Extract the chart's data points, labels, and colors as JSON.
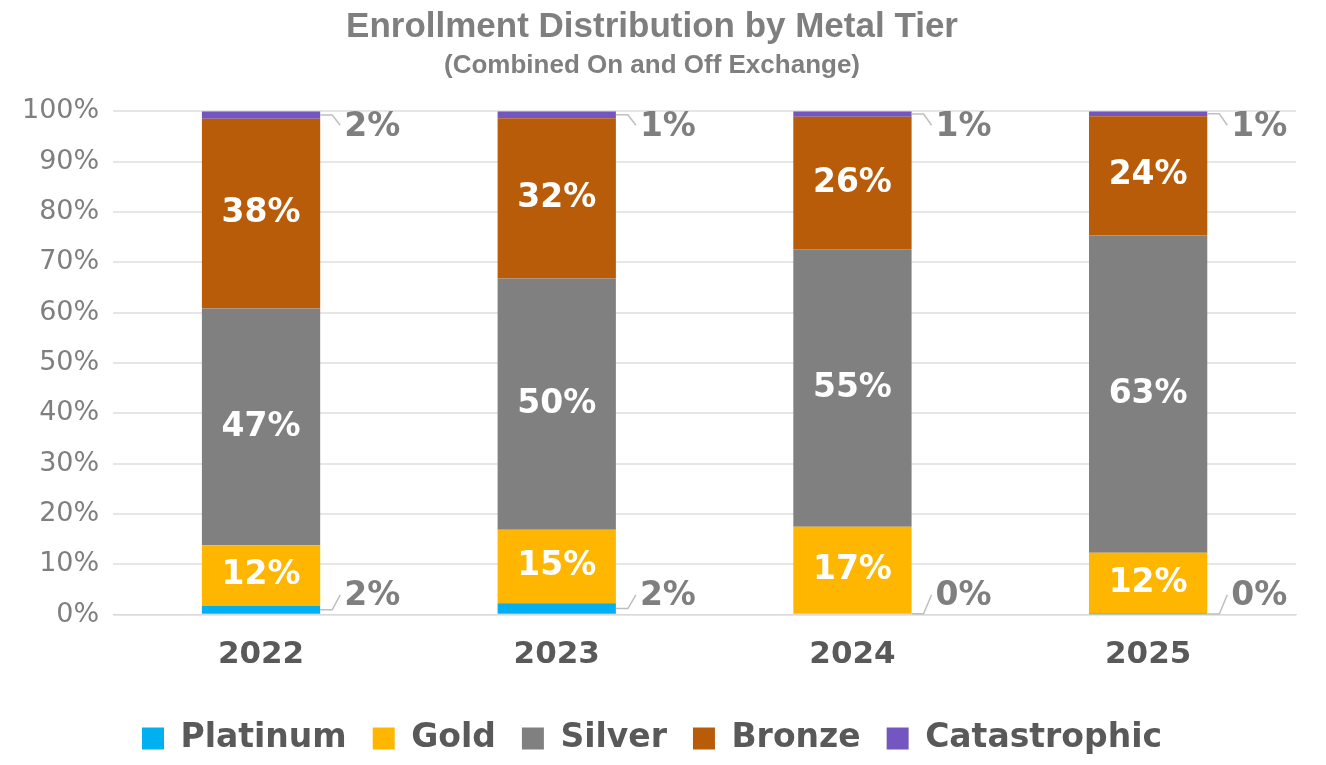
{
  "chart_data": {
    "type": "bar",
    "title": "Enrollment Distribution by Metal Tier",
    "subtitle": "(Combined On and Off Exchange)",
    "categories": [
      "2022",
      "2023",
      "2024",
      "2025"
    ],
    "stacked": true,
    "ylim": [
      0,
      100
    ],
    "yticks": [
      {
        "value": 0,
        "label": "0%"
      },
      {
        "value": 10,
        "label": "10%"
      },
      {
        "value": 20,
        "label": "20%"
      },
      {
        "value": 30,
        "label": "30%"
      },
      {
        "value": 40,
        "label": "40%"
      },
      {
        "value": 50,
        "label": "50%"
      },
      {
        "value": 60,
        "label": "60%"
      },
      {
        "value": 70,
        "label": "70%"
      },
      {
        "value": 80,
        "label": "80%"
      },
      {
        "value": 90,
        "label": "90%"
      },
      {
        "value": 100,
        "label": "100%"
      }
    ],
    "grid": "y",
    "legend": "bottom",
    "series": [
      {
        "name": "Platinum",
        "color": "#00b0f0",
        "values": [
          1.8,
          2.3,
          0.2,
          0.1
        ],
        "value_labels": [
          "2%",
          "2%",
          "0%",
          "0%"
        ]
      },
      {
        "name": "Gold",
        "color": "#ffb600",
        "values": [
          12,
          14.6,
          17.3,
          12.2
        ],
        "value_labels": [
          "12%",
          "15%",
          "17%",
          "12%"
        ]
      },
      {
        "name": "Silver",
        "color": "#808080",
        "values": [
          47,
          49.9,
          55.1,
          63
        ],
        "value_labels": [
          "47%",
          "50%",
          "55%",
          "63%"
        ]
      },
      {
        "name": "Bronze",
        "color": "#b85c0a",
        "values": [
          37.7,
          31.8,
          26.3,
          23.7
        ],
        "value_labels": [
          "38%",
          "32%",
          "26%",
          "24%"
        ]
      },
      {
        "name": "Catastrophic",
        "color": "#7356bf",
        "values": [
          1.5,
          1.4,
          1.1,
          1
        ],
        "value_labels": [
          "2%",
          "1%",
          "1%",
          "1%"
        ]
      }
    ]
  }
}
